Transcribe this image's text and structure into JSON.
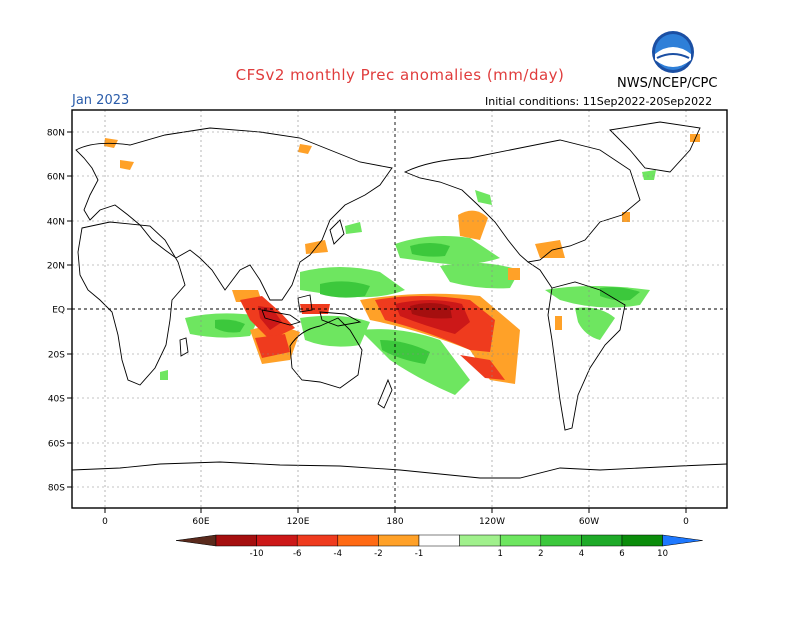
{
  "header": {
    "title": "CFSv2 monthly Prec anomalies (mm/day)",
    "month": "Jan 2023",
    "initial_conditions": "Initial conditions: 11Sep2022-20Sep2022",
    "agency": "NWS/NCEP/CPC",
    "logo_text": "NOAA"
  },
  "axes": {
    "lat_labels": [
      "80N",
      "60N",
      "40N",
      "20N",
      "EQ",
      "20S",
      "40S",
      "60S",
      "80S"
    ],
    "lon_labels": [
      "0",
      "60E",
      "120E",
      "180",
      "120W",
      "60W",
      "0"
    ]
  },
  "colorbar": {
    "labels": [
      "-10",
      "-6",
      "-4",
      "-2",
      "-1",
      "1",
      "2",
      "4",
      "6",
      "10"
    ],
    "colors": [
      "#5a2a1c",
      "#a50f0f",
      "#cc1818",
      "#ef3b1e",
      "#ff6a14",
      "#ffa128",
      "#ffffff",
      "#a0f08c",
      "#6ee660",
      "#3cc83c",
      "#1eaa28",
      "#0a8c0a",
      "#1e78ff"
    ]
  }
}
